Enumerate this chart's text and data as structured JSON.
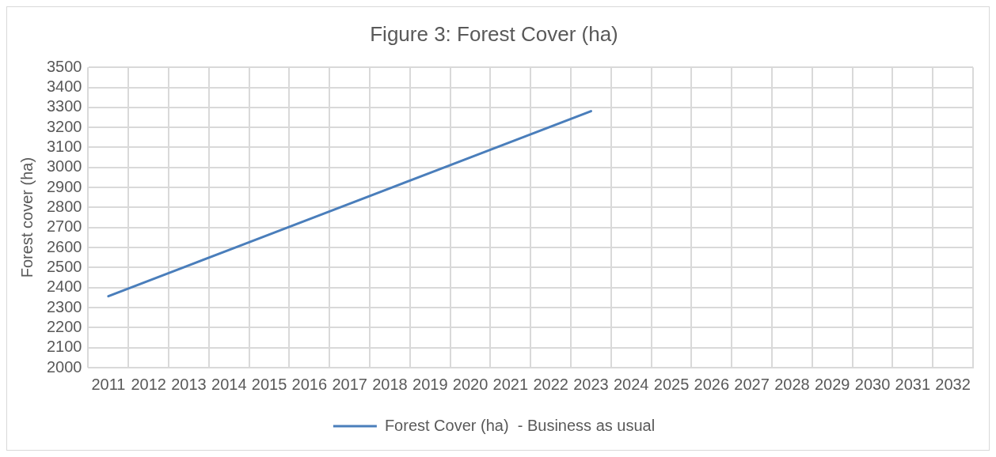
{
  "chart_data": {
    "type": "line",
    "title": "Figure 3: Forest Cover (ha)",
    "ylabel": "Forest cover (ha)",
    "categories": [
      "2011",
      "2012",
      "2013",
      "2014",
      "2015",
      "2016",
      "2017",
      "2018",
      "2019",
      "2020",
      "2021",
      "2022",
      "2023",
      "2024",
      "2025",
      "2026",
      "2027",
      "2028",
      "2029",
      "2030",
      "2031",
      "2032"
    ],
    "series": [
      {
        "name": "Forest Cover (ha)  - Business as usual",
        "color": "#4a7ebb",
        "values": [
          2357,
          2434,
          2511,
          2588,
          2665,
          2742,
          2819,
          2896,
          2973,
          3050,
          3127,
          3204,
          3281,
          null,
          null,
          null,
          null,
          null,
          null,
          null,
          null,
          null
        ]
      }
    ],
    "ylim": [
      2000,
      3500
    ],
    "yticks": [
      2000,
      2100,
      2200,
      2300,
      2400,
      2500,
      2600,
      2700,
      2800,
      2900,
      3000,
      3100,
      3200,
      3300,
      3400,
      3500
    ],
    "grid": true,
    "legend": "bottom",
    "marker": "none",
    "line_style": "solid"
  }
}
